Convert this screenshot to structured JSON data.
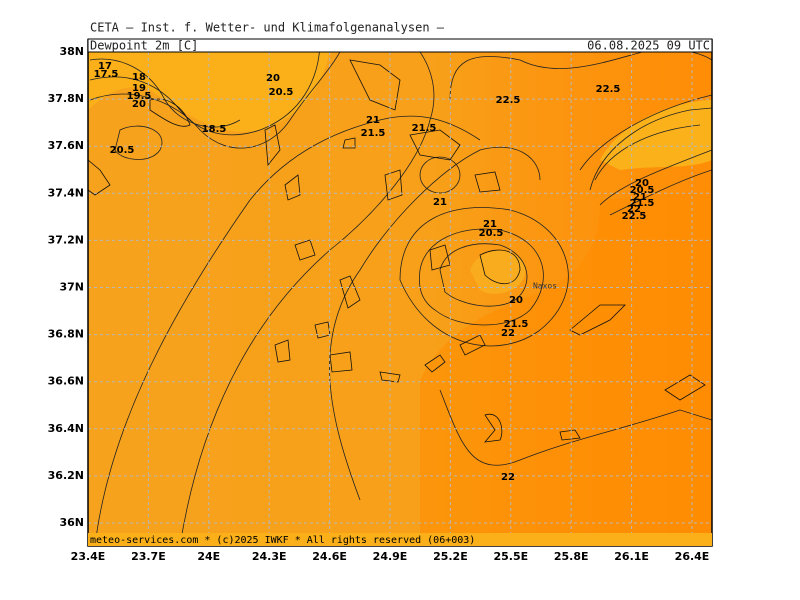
{
  "header": {
    "institute": "CETA — Inst. f. Wetter- und Klimafolgenanalysen —",
    "title": "Dewpoint 2m [C]",
    "time": "06.08.2025 09 UTC",
    "footer": "meteo-services.com * (c)2025 IWKF * All rights reserved (06+003)"
  },
  "map": {
    "lat_ticks": [
      {
        "value": 38,
        "label": "38N"
      },
      {
        "value": 37.8,
        "label": "37.8N"
      },
      {
        "value": 37.6,
        "label": "37.6N"
      },
      {
        "value": 37.4,
        "label": "37.4N"
      },
      {
        "value": 37.2,
        "label": "37.2N"
      },
      {
        "value": 37,
        "label": "37N"
      },
      {
        "value": 36.8,
        "label": "36.8N"
      },
      {
        "value": 36.6,
        "label": "36.6N"
      },
      {
        "value": 36.4,
        "label": "36.4N"
      },
      {
        "value": 36.2,
        "label": "36.2N"
      },
      {
        "value": 36,
        "label": "36N"
      }
    ],
    "lon_ticks": [
      {
        "value": 23.4,
        "label": "23.4E"
      },
      {
        "value": 23.7,
        "label": "23.7E"
      },
      {
        "value": 24,
        "label": "24E"
      },
      {
        "value": 24.3,
        "label": "24.3E"
      },
      {
        "value": 24.6,
        "label": "24.6E"
      },
      {
        "value": 24.9,
        "label": "24.9E"
      },
      {
        "value": 25.2,
        "label": "25.2E"
      },
      {
        "value": 25.5,
        "label": "25.5E"
      },
      {
        "value": 25.8,
        "label": "25.8E"
      },
      {
        "value": 26.1,
        "label": "26.1E"
      },
      {
        "value": 26.4,
        "label": "26.4E"
      }
    ],
    "contour_labels": [
      17,
      17.5,
      18,
      19,
      19.5,
      20,
      18.5,
      20.5,
      20,
      20.5,
      21,
      21.5,
      21.5,
      22.5,
      22.5,
      21,
      21,
      20.5,
      20,
      21.5,
      22,
      20,
      20.5,
      21,
      21.5,
      22,
      22.5,
      22
    ],
    "place": "Naxos"
  }
}
